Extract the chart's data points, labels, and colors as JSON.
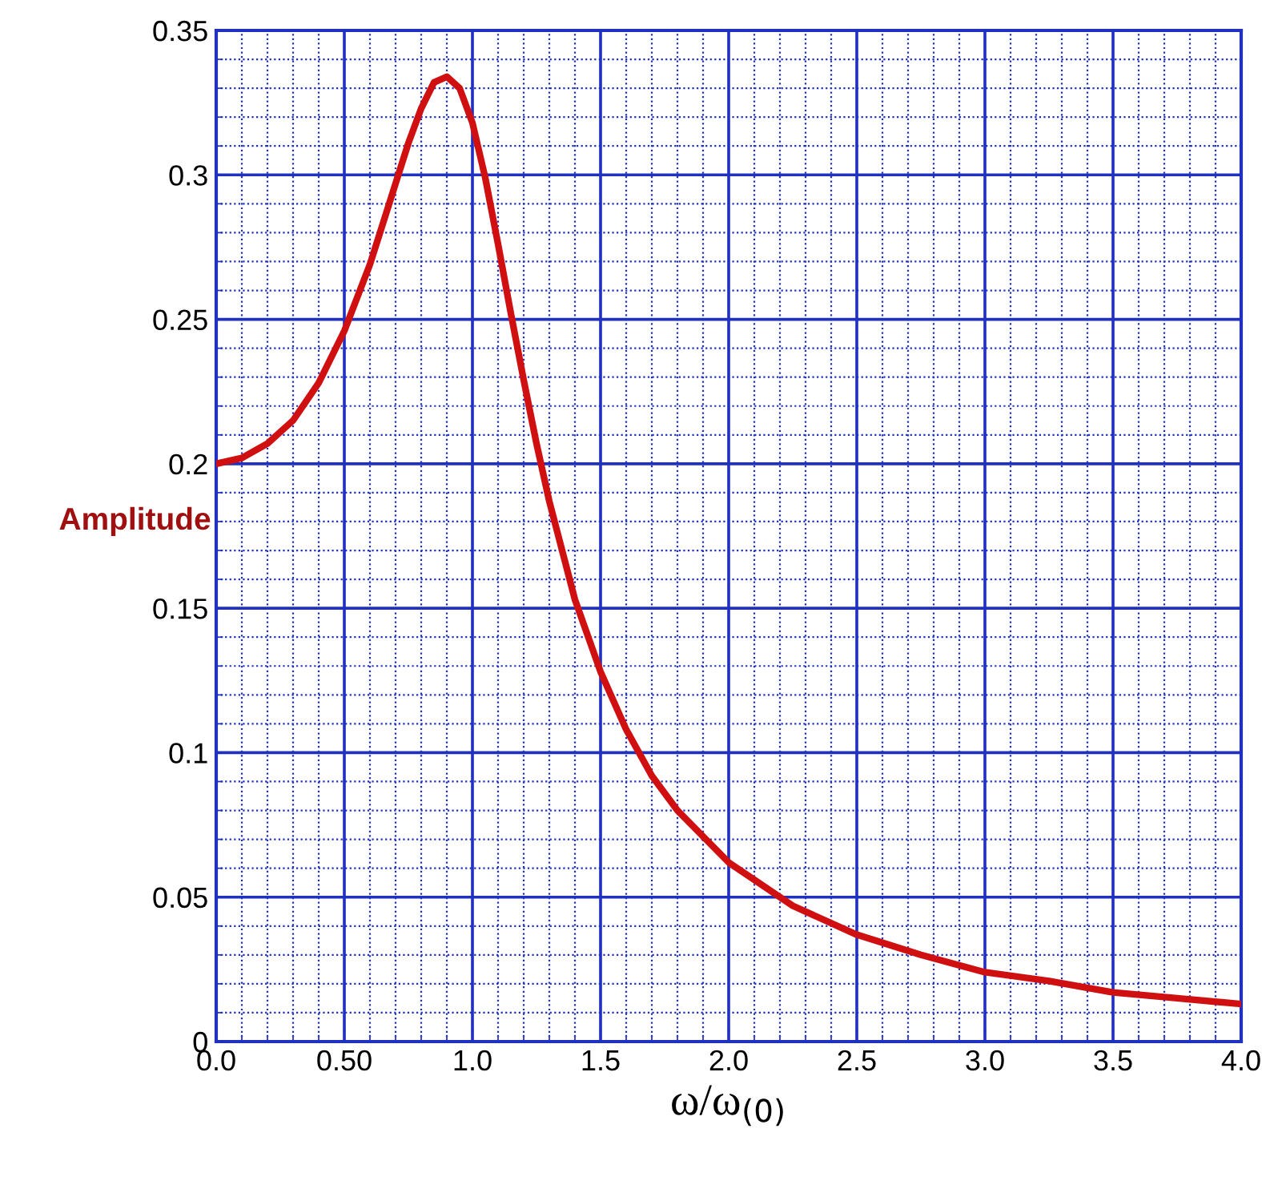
{
  "chart_data": {
    "type": "line",
    "xlabel": "ω/ω$_{(0)}$",
    "ylabel": "Amplitude",
    "x": [
      0,
      0.1,
      0.2,
      0.3,
      0.4,
      0.5,
      0.6,
      0.7,
      0.75,
      0.8,
      0.85,
      0.9,
      0.95,
      1.0,
      1.05,
      1.1,
      1.15,
      1.2,
      1.25,
      1.3,
      1.4,
      1.5,
      1.6,
      1.7,
      1.8,
      2.0,
      2.25,
      2.5,
      2.75,
      3.0,
      3.25,
      3.5,
      3.75,
      4.0
    ],
    "series": [
      {
        "color": "#d01010",
        "values": [
          0.2,
          0.202,
          0.207,
          0.215,
          0.228,
          0.246,
          0.269,
          0.297,
          0.311,
          0.323,
          0.332,
          0.334,
          0.33,
          0.318,
          0.299,
          0.276,
          0.252,
          0.229,
          0.207,
          0.187,
          0.153,
          0.128,
          0.108,
          0.092,
          0.08,
          0.062,
          0.047,
          0.037,
          0.03,
          0.024,
          0.021,
          0.017,
          0.015,
          0.013
        ]
      }
    ],
    "xlim": [
      0,
      4
    ],
    "ylim": [
      0,
      0.35
    ],
    "xticks": [
      {
        "value": 0,
        "label": "0.0"
      },
      {
        "value": 0.1,
        "label": null
      },
      {
        "value": 0.2,
        "label": null
      },
      {
        "value": 0.3,
        "label": null
      },
      {
        "value": 0.4,
        "label": null
      },
      {
        "value": 0.5,
        "label": "0.50"
      },
      {
        "value": 0.6,
        "label": null
      },
      {
        "value": 0.7,
        "label": null
      },
      {
        "value": 0.8,
        "label": null
      },
      {
        "value": 0.9,
        "label": null
      },
      {
        "value": 1,
        "label": "1.0"
      },
      {
        "value": 1.1,
        "label": null
      },
      {
        "value": 1.2,
        "label": null
      },
      {
        "value": 1.3,
        "label": null
      },
      {
        "value": 1.4,
        "label": null
      },
      1.5,
      {
        "value": 1.6,
        "label": null
      },
      {
        "value": 1.7,
        "label": null
      },
      {
        "value": 1.8,
        "label": null
      },
      {
        "value": 1.9,
        "label": null
      },
      {
        "value": 2,
        "label": "2.0"
      },
      {
        "value": 2.1,
        "label": null
      },
      {
        "value": 2.2,
        "label": null
      },
      {
        "value": 2.3,
        "label": null
      },
      {
        "value": 2.4,
        "label": null
      },
      2.5,
      {
        "value": 2.6,
        "label": null
      },
      {
        "value": 2.7,
        "label": null
      },
      {
        "value": 2.8,
        "label": null
      },
      {
        "value": 2.9,
        "label": null
      },
      {
        "value": 3,
        "label": "3.0"
      },
      {
        "value": 3.1,
        "label": null
      },
      {
        "value": 3.2,
        "label": null
      },
      {
        "value": 3.3,
        "label": null
      },
      {
        "value": 3.4,
        "label": null
      },
      3.5,
      {
        "value": 3.6,
        "label": null
      },
      {
        "value": 3.7,
        "label": null
      },
      {
        "value": 3.8,
        "label": null
      },
      {
        "value": 3.9,
        "label": null
      },
      {
        "value": 4,
        "label": "4.0"
      }
    ],
    "yticks": [
      0,
      {
        "value": 0.01,
        "label": null
      },
      {
        "value": 0.02,
        "label": null
      },
      {
        "value": 0.03,
        "label": null
      },
      {
        "value": 0.04,
        "label": null
      },
      0.05,
      {
        "value": 0.06,
        "label": null
      },
      {
        "value": 0.07,
        "label": null
      },
      {
        "value": 0.08,
        "label": null
      },
      {
        "value": 0.09,
        "label": null
      },
      0.1,
      {
        "value": 0.11,
        "label": null
      },
      {
        "value": 0.12,
        "label": null
      },
      {
        "value": 0.13,
        "label": null
      },
      {
        "value": 0.14,
        "label": null
      },
      0.15,
      {
        "value": 0.16,
        "label": null
      },
      {
        "value": 0.17,
        "label": null
      },
      {
        "value": 0.18,
        "label": null
      },
      {
        "value": 0.19,
        "label": null
      },
      0.2,
      {
        "value": 0.21,
        "label": null
      },
      {
        "value": 0.22,
        "label": null
      },
      {
        "value": 0.23,
        "label": null
      },
      {
        "value": 0.24,
        "label": null
      },
      0.25,
      {
        "value": 0.26,
        "label": null
      },
      {
        "value": 0.27,
        "label": null
      },
      {
        "value": 0.28,
        "label": null
      },
      {
        "value": 0.29,
        "label": null
      },
      0.3,
      {
        "value": 0.31,
        "label": null
      },
      {
        "value": 0.32,
        "label": null
      },
      {
        "value": 0.33,
        "label": null
      },
      {
        "value": 0.34,
        "label": null
      },
      0.35
    ],
    "grid": true,
    "legend": false,
    "marker": "none",
    "line_style": "solid"
  }
}
